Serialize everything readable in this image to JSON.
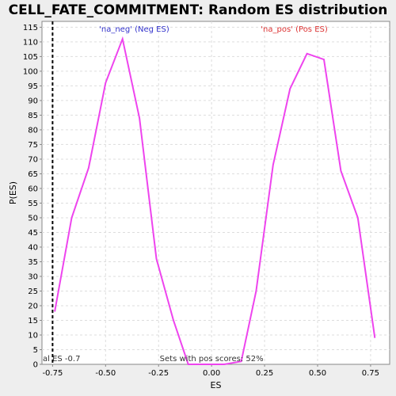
{
  "chart_data": {
    "type": "line",
    "title": "CELL_FATE_COMMITMENT: Random ES distribution",
    "xlabel": "ES",
    "ylabel": "P(ES)",
    "xlim": [
      -0.8,
      0.84
    ],
    "ylim": [
      0,
      117
    ],
    "x_ticks": [
      -0.75,
      -0.5,
      -0.25,
      0.0,
      0.25,
      0.5,
      0.75
    ],
    "x_tick_labels": [
      "-0.75",
      "-0.50",
      "-0.25",
      "0.00",
      "0.25",
      "0.50",
      "0.75"
    ],
    "y_ticks": [
      0,
      5,
      10,
      15,
      20,
      25,
      30,
      35,
      40,
      45,
      50,
      55,
      60,
      65,
      70,
      75,
      80,
      85,
      90,
      95,
      100,
      105,
      110,
      115
    ],
    "grid": true,
    "series": [
      {
        "color": "#ee44ee",
        "x": [
          -0.74,
          -0.66,
          -0.58,
          -0.5,
          -0.42,
          -0.34,
          -0.26,
          -0.18,
          -0.11,
          -0.05,
          0.0,
          0.06,
          0.14,
          0.21,
          0.29,
          0.37,
          0.45,
          0.53,
          0.61,
          0.69,
          0.77
        ],
        "y": [
          18,
          50,
          67,
          96,
          111,
          84,
          36,
          15,
          0,
          0,
          0,
          0,
          1,
          25,
          68,
          94,
          106,
          104,
          66,
          50,
          9
        ]
      }
    ],
    "actual_es": {
      "x": -0.75,
      "label": "al ES -0.7"
    },
    "annotations": {
      "neg_label": "'na_neg' (Neg ES)",
      "neg_color": "#3333cc",
      "pos_label": "'na_pos' (Pos ES)",
      "pos_color": "#dd3333",
      "footer": "Sets with pos scores: 52%"
    }
  }
}
